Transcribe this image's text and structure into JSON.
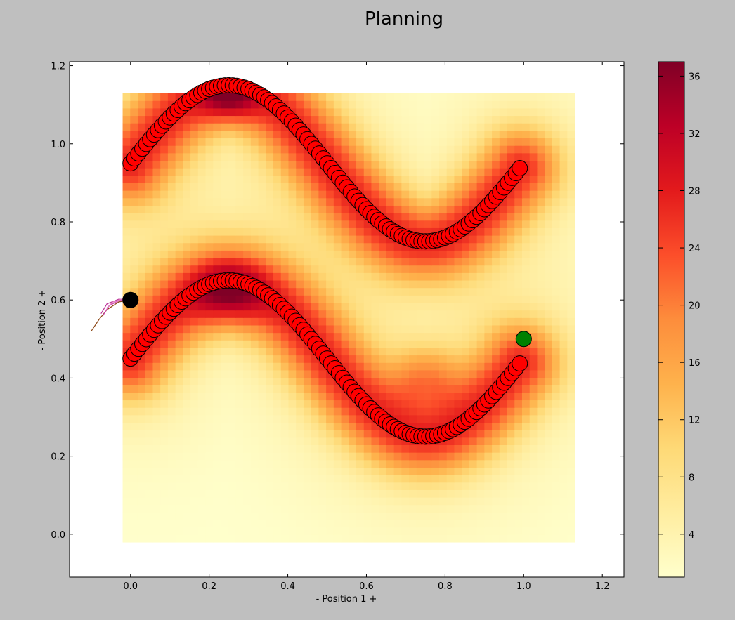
{
  "chart_data": {
    "type": "heatmap",
    "title": "Planning",
    "xlabel": "- Position 1 +",
    "ylabel": "- Position 2 +",
    "xlim": [
      -0.155,
      1.255
    ],
    "ylim": [
      -0.11,
      1.21
    ],
    "xticks": [
      "0.0",
      "0.2",
      "0.4",
      "0.6",
      "0.8",
      "1.0",
      "1.2"
    ],
    "yticks": [
      "0.0",
      "0.2",
      "0.4",
      "0.6",
      "0.8",
      "1.0",
      "1.2"
    ],
    "heatmap_extent": {
      "x": [
        -0.02,
        1.13
      ],
      "y": [
        -0.02,
        1.13
      ]
    },
    "colorbar": {
      "min": 1,
      "max": 37,
      "ticks": [
        "4",
        "8",
        "12",
        "16",
        "20",
        "24",
        "28",
        "32",
        "36"
      ],
      "colormap": "YlOrRd",
      "colors": [
        "#ffffcc",
        "#ffeda0",
        "#fed976",
        "#feb24c",
        "#fd8d3c",
        "#fc4e2a",
        "#e31a1c",
        "#bd0026",
        "#800026"
      ]
    },
    "obstacle_curves": [
      {
        "x_start": 0.0,
        "x_end": 0.99,
        "center": 0.95,
        "amplitude": 0.2,
        "period": 1.0
      },
      {
        "x_start": 0.0,
        "x_end": 0.99,
        "center": 0.45,
        "amplitude": 0.2,
        "period": 1.0
      }
    ],
    "obstacle_marker_color": "#ff0000",
    "start_point": {
      "x": 0.0,
      "y": 0.6,
      "color": "#000000"
    },
    "goal_point": {
      "x": 1.0,
      "y": 0.5,
      "color": "#008000"
    },
    "trajectories": [
      {
        "color": "#8b4513",
        "points": [
          [
            0.0,
            0.6
          ],
          [
            -0.03,
            0.595
          ],
          [
            -0.06,
            0.575
          ],
          [
            -0.08,
            0.55
          ],
          [
            -0.1,
            0.52
          ]
        ]
      },
      {
        "color": "#cc44aa",
        "points": [
          [
            0.0,
            0.6
          ],
          [
            -0.03,
            0.598
          ],
          [
            -0.055,
            0.585
          ],
          [
            -0.07,
            0.56
          ]
        ]
      },
      {
        "color": "#dd66bb",
        "points": [
          [
            0.0,
            0.6
          ],
          [
            -0.025,
            0.6
          ],
          [
            -0.05,
            0.59
          ],
          [
            -0.065,
            0.57
          ]
        ]
      },
      {
        "color": "#bb3399",
        "points": [
          [
            0.0,
            0.6
          ],
          [
            -0.03,
            0.602
          ],
          [
            -0.06,
            0.59
          ],
          [
            -0.075,
            0.565
          ]
        ]
      },
      {
        "color": "#e080c0",
        "points": [
          [
            0.0,
            0.6
          ],
          [
            -0.02,
            0.603
          ],
          [
            -0.045,
            0.595
          ],
          [
            -0.06,
            0.58
          ]
        ]
      }
    ]
  }
}
